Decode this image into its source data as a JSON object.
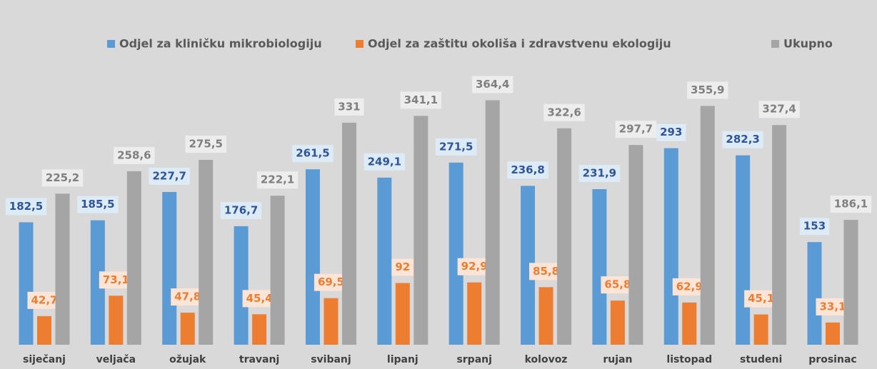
{
  "chart_data": {
    "type": "bar",
    "categories": [
      "siječanj",
      "veljača",
      "ožujak",
      "travanj",
      "svibanj",
      "lipanj",
      "srpanj",
      "kolovoz",
      "rujan",
      "listopad",
      "studeni",
      "prosinac"
    ],
    "series": [
      {
        "name": "Odjel za kliničku mikrobiologiju",
        "color": "#5b9bd5",
        "values": [
          182.5,
          185.5,
          227.7,
          176.7,
          261.5,
          249.1,
          271.5,
          236.8,
          231.9,
          293,
          282.3,
          153
        ],
        "value_labels": [
          "182,5",
          "185,5",
          "227,7",
          "176,7",
          "261,5",
          "249,1",
          "271,5",
          "236,8",
          "231,9",
          "293",
          "282,3",
          "153"
        ]
      },
      {
        "name": "Odjel za zaštitu okoliša i zdravstvenu ekologiju",
        "color": "#ed7d31",
        "values": [
          42.7,
          73.1,
          47.8,
          45.4,
          69.5,
          92,
          92.9,
          85.8,
          65.8,
          62.9,
          45.1,
          33.1
        ],
        "value_labels": [
          "42,7",
          "73,1",
          "47,8",
          "45,4",
          "69,5",
          "92",
          "92,9",
          "85,8",
          "65,8",
          "62,9",
          "45,1",
          "33,1"
        ]
      },
      {
        "name": "Ukupno",
        "color": "#a5a5a5",
        "values": [
          225.2,
          258.6,
          275.5,
          222.1,
          331,
          341.1,
          364.4,
          322.6,
          297.7,
          355.9,
          327.4,
          186.1
        ],
        "value_labels": [
          "225,2",
          "258,6",
          "275,5",
          "222,1",
          "331",
          "341,1",
          "364,4",
          "322,6",
          "297,7",
          "355,9",
          "327,4",
          "186,1"
        ]
      }
    ],
    "legend": "top"
  }
}
